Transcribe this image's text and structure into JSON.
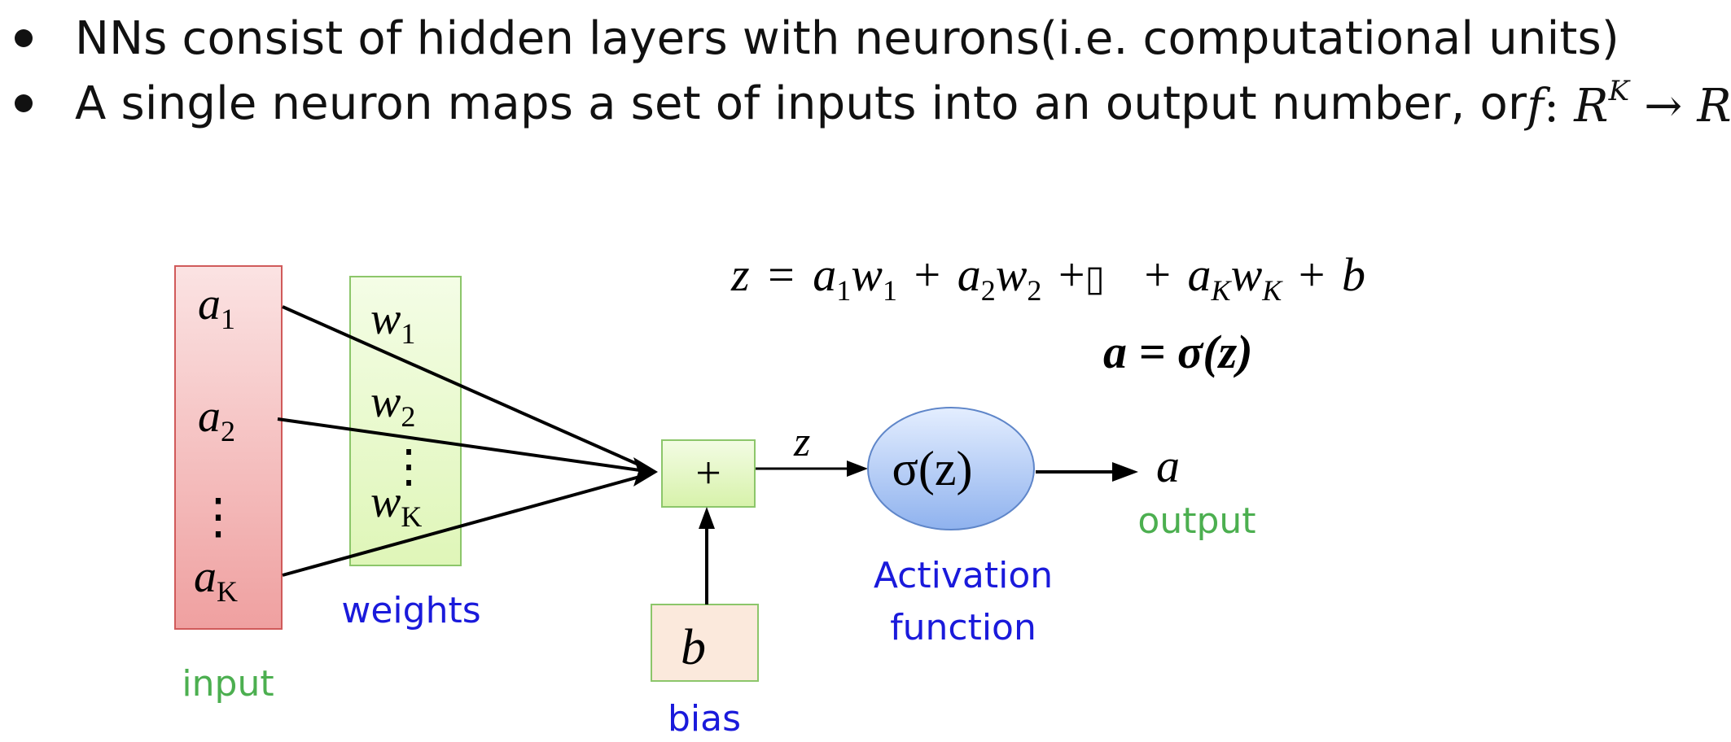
{
  "bullets": [
    {
      "text": "NNs consist of hidden layers with neurons(i.e. computational units)"
    },
    {
      "text": "A single neuron maps a set of inputs into an output number, or ",
      "math": {
        "f": "f",
        "colon": ":",
        "R": "R",
        "sup": "K",
        "arrow": "→",
        "R2": "R"
      }
    }
  ],
  "diagram": {
    "inputs": [
      {
        "var": "a",
        "sub": "1"
      },
      {
        "var": "a",
        "sub": "2"
      },
      {
        "var": "a",
        "sub": "K"
      }
    ],
    "input_dots": "⋮",
    "weights": [
      {
        "var": "w",
        "sub": "1"
      },
      {
        "var": "w",
        "sub": "2"
      },
      {
        "var": "w",
        "sub": "K"
      }
    ],
    "weight_dots": "⋮",
    "sum_symbol": "+",
    "z_label": "z",
    "bias_symbol": "b",
    "activation_text": "σ(z)",
    "output_symbol": "a",
    "labels": {
      "input": "input",
      "weights": "weights",
      "bias": "bias",
      "activation_line1": "Activation",
      "activation_line2": "function",
      "output": "output"
    },
    "equation1": {
      "lhs": "z",
      "eq": "=",
      "terms": [
        {
          "var": "a",
          "sub": "1"
        },
        {
          "var": "w",
          "sub": "1"
        },
        {
          "op": "+"
        },
        {
          "var": "a",
          "sub": "2"
        },
        {
          "var": "w",
          "sub": "2"
        },
        {
          "op": "+"
        },
        {
          "box": "▯"
        },
        {
          "op": "+"
        },
        {
          "var": "a",
          "sub": "K"
        },
        {
          "var": "w",
          "sub": "K"
        },
        {
          "op": "+"
        },
        {
          "var": "b"
        }
      ]
    },
    "equation2": "a = σ(z)",
    "colors": {
      "green_label": "#4caf50",
      "blue_label": "#1a1adb",
      "input_fill_top": "#fbe3e3",
      "input_fill_bottom": "#efa0a0",
      "input_stroke": "#d05a5a",
      "weights_fill_top": "#f4fde6",
      "weights_fill_bottom": "#dff6b8",
      "weights_stroke": "#8cc66a",
      "bias_fill": "#fbe9dc",
      "activation_fill_top": "#dbe8ff",
      "activation_fill_bottom": "#8fb2ee",
      "activation_stroke": "#5f86c9"
    }
  }
}
